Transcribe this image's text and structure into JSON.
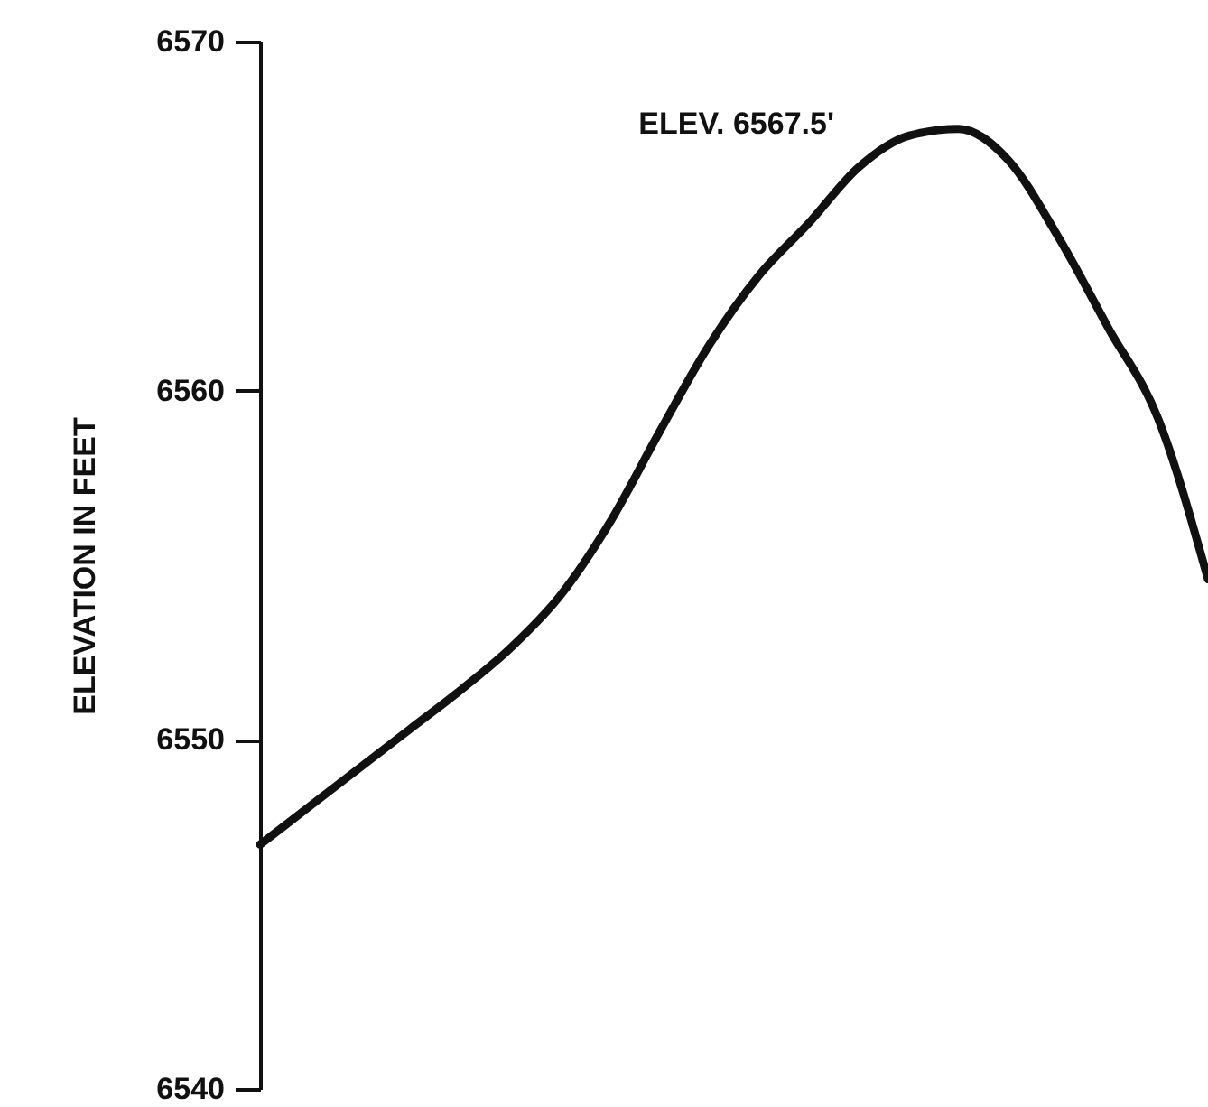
{
  "chart_data": {
    "type": "line",
    "ylabel": "ELEVATION IN FEET",
    "categories": [
      null,
      null,
      null,
      null,
      null,
      null,
      null,
      null,
      null,
      null,
      null,
      null,
      null,
      null,
      null,
      null,
      null,
      null,
      null,
      null
    ],
    "series": [
      {
        "color": "#111111",
        "values": [
          6547.0,
          6548.1,
          6549.2,
          6550.3,
          6551.4,
          6552.6,
          6554.1,
          6556.2,
          6558.8,
          6561.3,
          6563.3,
          6564.8,
          6566.4,
          6567.3,
          6567.5,
          6566.6,
          6564.4,
          6561.8,
          6559.2,
          6554.6
        ]
      }
    ],
    "ylim": [
      6540,
      6570
    ],
    "yticks": [
      6540,
      6550,
      6560,
      6570
    ],
    "annotations": [
      "ELEV. 6567.5'"
    ],
    "tick_labels": "y",
    "grid": false,
    "marker": "none",
    "line_style": "solid"
  }
}
